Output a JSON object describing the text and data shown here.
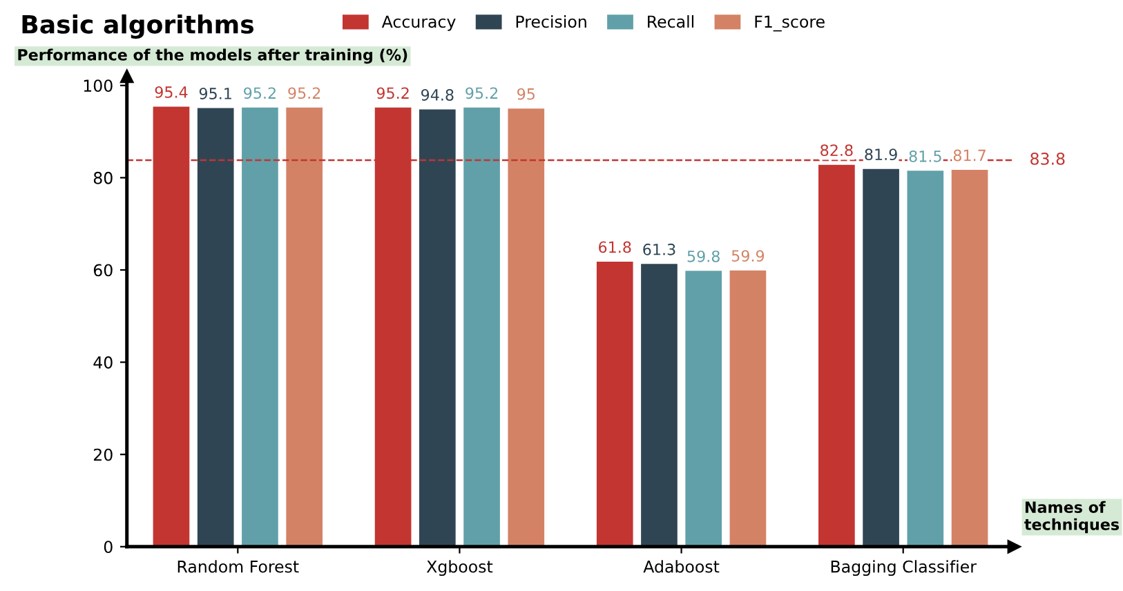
{
  "chart_data": {
    "type": "bar",
    "title": "Basic algorithms",
    "ylabel": "Performance of the models after training (%)",
    "xlabel": "Names of techniques",
    "categories": [
      "Random Forest",
      "Xgboost",
      "Adaboost",
      "Bagging Classifier"
    ],
    "series": [
      {
        "name": "Accuracy",
        "color": "#c23531",
        "values": [
          95.4,
          95.2,
          61.8,
          82.8
        ]
      },
      {
        "name": "Precision",
        "color": "#2f4554",
        "values": [
          95.1,
          94.8,
          61.3,
          81.9
        ]
      },
      {
        "name": "Recall",
        "color": "#61a0a8",
        "values": [
          95.2,
          95.2,
          59.8,
          81.5
        ]
      },
      {
        "name": "F1_score",
        "color": "#d48265",
        "values": [
          95.2,
          95,
          59.9,
          81.7
        ]
      }
    ],
    "ylim": [
      0,
      102
    ],
    "yticks": [
      0,
      20,
      40,
      60,
      80,
      100
    ],
    "grid": false,
    "legend": "top",
    "data_labels": true,
    "ref_lines": [
      {
        "axis": "y",
        "value": 83.8,
        "label": "83.8",
        "color": "#c23531",
        "line_style": "dashed"
      }
    ]
  }
}
